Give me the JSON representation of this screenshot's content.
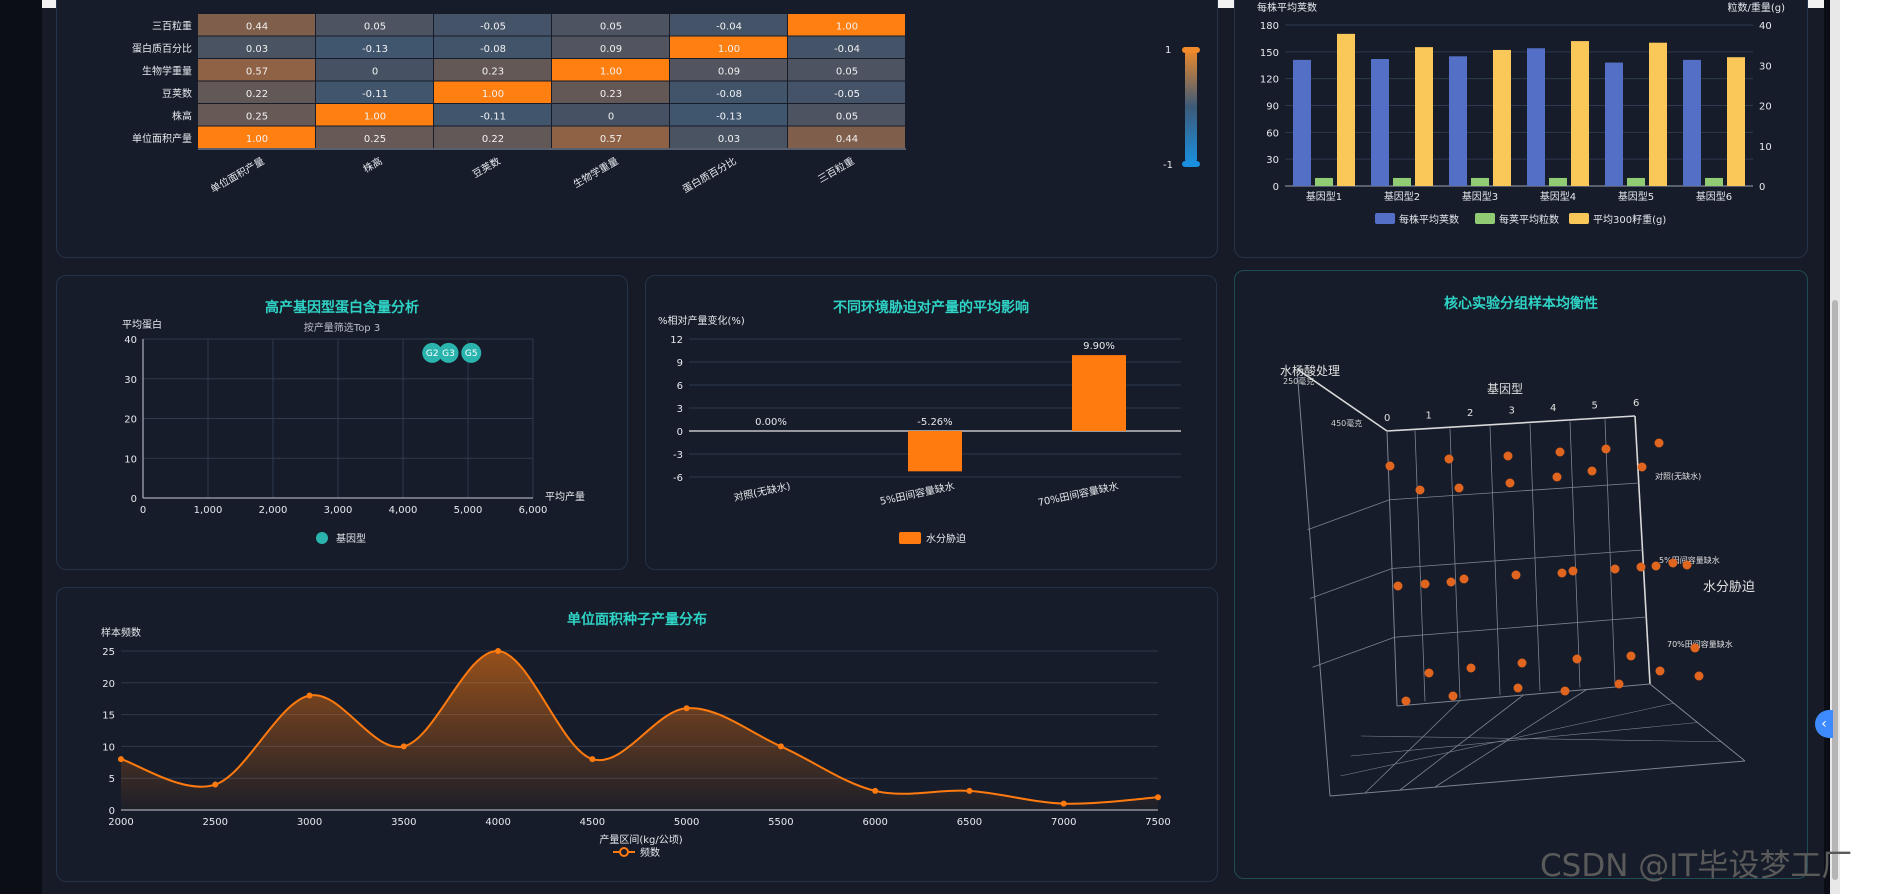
{
  "heatmap": {
    "row_labels": [
      "三百粒重",
      "蛋白质百分比",
      "生物学重量",
      "豆荚数",
      "株高",
      "单位面积产量"
    ],
    "col_labels": [
      "单位面积产量",
      "株高",
      "豆荚数",
      "生物学重量",
      "蛋白质百分比",
      "三百粒重"
    ],
    "matrix": [
      [
        "0.44",
        "0.05",
        "-0.05",
        "0.05",
        "-0.04",
        "1.00"
      ],
      [
        "0.03",
        "-0.13",
        "-0.08",
        "0.09",
        "1.00",
        "-0.04"
      ],
      [
        "0.57",
        "0",
        "0.23",
        "1.00",
        "0.09",
        "0.05"
      ],
      [
        "0.22",
        "-0.11",
        "1.00",
        "0.23",
        "-0.08",
        "-0.05"
      ],
      [
        "0.25",
        "1.00",
        "-0.11",
        "0",
        "-0.13",
        "0.05"
      ],
      [
        "1.00",
        "0.25",
        "0.22",
        "0.57",
        "0.03",
        "0.44"
      ]
    ],
    "legend_max": "1",
    "legend_min": "-1"
  },
  "genotype_bar": {
    "left_axis_label": "每株平均荚数",
    "right_axis_label": "粒数/重量(g)",
    "categories": [
      "基因型1",
      "基因型2",
      "基因型3",
      "基因型4",
      "基因型5",
      "基因型6"
    ],
    "left_ticks": [
      "0",
      "30",
      "60",
      "90",
      "120",
      "150",
      "180"
    ],
    "right_ticks": [
      "0",
      "10",
      "20",
      "30",
      "40"
    ],
    "legend": [
      "每株平均荚数",
      "每荚平均粒数",
      "平均300籽重(g)"
    ],
    "colors": [
      "#5470c6",
      "#91cc75",
      "#fac858"
    ]
  },
  "scatter": {
    "title": "高产基因型蛋白含量分析",
    "subtitle": "按产量筛选Top 3",
    "ylabel": "平均蛋白",
    "xlabel": "平均产量",
    "x_ticks": [
      "0",
      "1,000",
      "2,000",
      "3,000",
      "4,000",
      "5,000",
      "6,000"
    ],
    "y_ticks": [
      "0",
      "10",
      "20",
      "30",
      "40"
    ],
    "points": [
      {
        "label": "G2"
      },
      {
        "label": "G3"
      },
      {
        "label": "G5"
      }
    ],
    "legend": "基因型"
  },
  "stress": {
    "title": "不同环境胁迫对产量的平均影响",
    "ylabel": "%相对产量变化(%)",
    "categories": [
      "对照(无缺水)",
      "5%田间容量缺水",
      "70%田间容量缺水"
    ],
    "value_labels": [
      "0.00%",
      "-5.26%",
      "9.90%"
    ],
    "y_ticks": [
      "-6",
      "-3",
      "0",
      "3",
      "6",
      "9",
      "12"
    ],
    "legend": "水分胁迫"
  },
  "threed": {
    "title": "核心实验分组样本均衡性",
    "axis_y": "水杨酸处理",
    "axis_x": "基因型",
    "axis_z": "水分胁迫",
    "y_ticks": [
      "250毫克",
      "450毫克"
    ],
    "x_ticks": [
      "0",
      "1",
      "2",
      "3",
      "4",
      "5",
      "6"
    ],
    "z_ticks": [
      "对照(无缺水)",
      "5%田间容量缺水",
      "70%田间容量缺水"
    ]
  },
  "area": {
    "title": "单位面积种子产量分布",
    "ylabel": "样本频数",
    "xlabel": "产量区间(kg/公顷)",
    "legend": "频数",
    "x_ticks": [
      "2000",
      "2500",
      "3000",
      "3500",
      "4000",
      "4500",
      "5000",
      "5500",
      "6000",
      "6500",
      "7000",
      "7500"
    ],
    "y_ticks": [
      "0",
      "5",
      "10",
      "15",
      "20",
      "25"
    ]
  },
  "watermark": "CSDN @IT毕设梦工厂",
  "chart_data": [
    {
      "type": "heatmap",
      "title": "",
      "x": [
        "单位面积产量",
        "株高",
        "豆荚数",
        "生物学重量",
        "蛋白质百分比",
        "三百粒重"
      ],
      "y": [
        "三百粒重",
        "蛋白质百分比",
        "生物学重量",
        "豆荚数",
        "株高",
        "单位面积产量"
      ],
      "values": [
        [
          0.44,
          0.05,
          -0.05,
          0.05,
          -0.04,
          1.0
        ],
        [
          0.03,
          -0.13,
          -0.08,
          0.09,
          1.0,
          -0.04
        ],
        [
          0.57,
          0,
          0.23,
          1.0,
          0.09,
          0.05
        ],
        [
          0.22,
          -0.11,
          1.0,
          0.23,
          -0.08,
          -0.05
        ],
        [
          0.25,
          1.0,
          -0.11,
          0,
          -0.13,
          0.05
        ],
        [
          1.0,
          0.25,
          0.22,
          0.57,
          0.03,
          0.44
        ]
      ],
      "range": [
        -1,
        1
      ]
    },
    {
      "type": "bar",
      "categories": [
        "基因型1",
        "基因型2",
        "基因型3",
        "基因型4",
        "基因型5",
        "基因型6"
      ],
      "series": [
        {
          "name": "每株平均荚数",
          "axis": "left",
          "values": [
            141,
            142,
            145,
            154,
            138,
            141
          ]
        },
        {
          "name": "每荚平均粒数",
          "axis": "right",
          "values": [
            2.0,
            2.0,
            2.0,
            2.0,
            2.0,
            2.0
          ]
        },
        {
          "name": "平均300籽重(g)",
          "axis": "right",
          "values": [
            37.8,
            34.5,
            33.8,
            36.0,
            35.6,
            32.0
          ]
        }
      ],
      "ylim_left": [
        0,
        180
      ],
      "ylim_right": [
        0,
        40
      ]
    },
    {
      "type": "scatter",
      "title": "高产基因型蛋白含量分析",
      "xlabel": "平均产量",
      "ylabel": "平均蛋白",
      "xlim": [
        0,
        6000
      ],
      "ylim": [
        0,
        40
      ],
      "points": [
        {
          "name": "G2",
          "x": 4450,
          "y": 36.5
        },
        {
          "name": "G3",
          "x": 4700,
          "y": 36.5
        },
        {
          "name": "G5",
          "x": 5050,
          "y": 36.5
        }
      ]
    },
    {
      "type": "bar",
      "title": "不同环境胁迫对产量的平均影响",
      "categories": [
        "对照(无缺水)",
        "5%田间容量缺水",
        "70%田间容量缺水"
      ],
      "series": [
        {
          "name": "水分胁迫",
          "values": [
            0.0,
            -5.26,
            9.9
          ]
        }
      ],
      "ylim": [
        -6,
        12
      ]
    },
    {
      "type": "area",
      "title": "单位面积种子产量分布",
      "xlabel": "产量区间(kg/公顷)",
      "ylabel": "样本频数",
      "series": [
        {
          "name": "频数",
          "x": [
            2000,
            2500,
            3000,
            3500,
            4000,
            4500,
            5000,
            5500,
            6000,
            6500,
            7000,
            7500
          ],
          "values": [
            8,
            4,
            18,
            10,
            25,
            8,
            16,
            10,
            3,
            3,
            1,
            2
          ]
        }
      ],
      "ylim": [
        0,
        25
      ]
    }
  ]
}
